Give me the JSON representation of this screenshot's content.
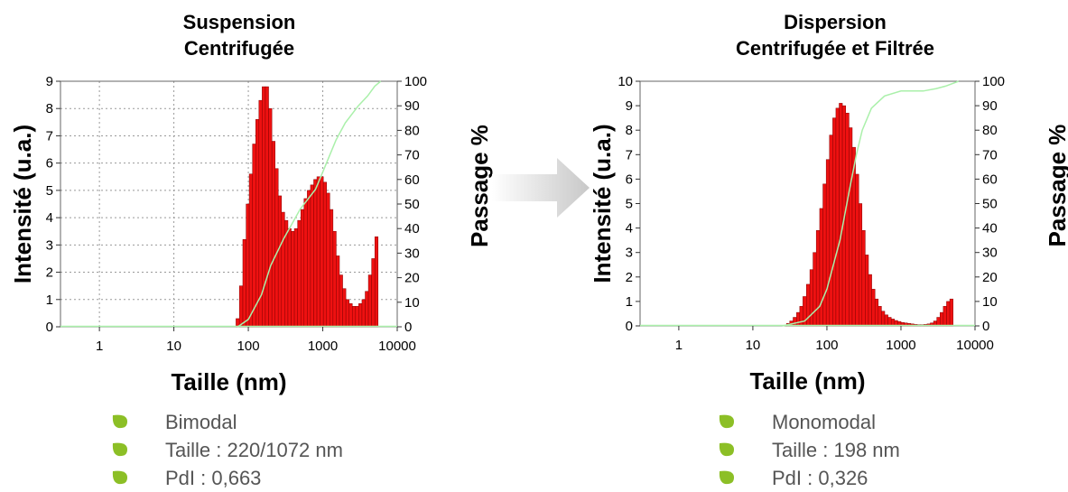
{
  "panels": [
    {
      "title_line1": "Suspension",
      "title_line2": "Centrifugée",
      "bullets": [
        "Bimodal",
        "Taille : 220/1072 nm",
        "PdI : 0,663"
      ]
    },
    {
      "title_line1": "Dispersion",
      "title_line2": "Centrifugée et Filtrée",
      "bullets": [
        "Monomodal",
        "Taille : 198 nm",
        "PdI : 0,326"
      ]
    }
  ],
  "colors": {
    "bars": "#ee1111",
    "bar_edge": "#880000",
    "cumulative": "#aaf0aa",
    "bullet": "#8cbf26",
    "arrow": "#c8c8c8"
  },
  "icons": {
    "bullet": "leaf-bullet-icon",
    "arrow": "right-arrow-icon"
  },
  "chart_data": [
    {
      "type": "bar",
      "xlabel": "Taille (nm)",
      "ylabel": "Intensité (u.a.)",
      "y2label": "Passage %",
      "xscale": "log",
      "xlim": [
        0.3,
        10000
      ],
      "xticks": [
        1,
        10,
        100,
        1000,
        10000
      ],
      "ylim": [
        0,
        9
      ],
      "yticks": [
        0,
        1,
        2,
        3,
        4,
        5,
        6,
        7,
        8,
        9
      ],
      "y2lim": [
        0,
        100
      ],
      "y2ticks": [
        0,
        10,
        20,
        30,
        40,
        50,
        60,
        70,
        80,
        90,
        100
      ],
      "grid": true,
      "x": [
        72,
        80,
        89,
        98,
        108,
        120,
        132,
        146,
        161,
        178,
        197,
        218,
        240,
        265,
        293,
        324,
        358,
        395,
        437,
        483,
        533,
        589,
        651,
        719,
        794,
        877,
        969,
        1070,
        1182,
        1305,
        1442,
        1593,
        1760,
        1944,
        2148,
        2372,
        2620,
        2894,
        3197,
        3532,
        3901,
        4310,
        4761,
        5260
      ],
      "values": [
        0.3,
        1.5,
        3.2,
        4.5,
        5.6,
        6.7,
        7.6,
        8.3,
        8.8,
        8.8,
        8.0,
        6.8,
        5.8,
        4.8,
        4.2,
        3.9,
        3.6,
        3.5,
        3.6,
        3.9,
        4.3,
        4.7,
        5.0,
        5.2,
        5.4,
        5.5,
        5.5,
        5.3,
        4.9,
        4.3,
        3.5,
        2.6,
        1.9,
        1.4,
        1.0,
        0.85,
        0.75,
        0.75,
        0.85,
        1.0,
        1.3,
        1.9,
        2.5,
        3.3
      ],
      "series": [
        {
          "name": "",
          "axis": "y2",
          "x": [
            72,
            100,
            150,
            200,
            300,
            500,
            800,
            1000,
            1500,
            2000,
            3000,
            4000,
            5000,
            6000
          ],
          "values": [
            0,
            3,
            13,
            25,
            36,
            48,
            56,
            63,
            76,
            83,
            90,
            94,
            98,
            100
          ]
        }
      ]
    },
    {
      "type": "bar",
      "xlabel": "Taille (nm)",
      "ylabel": "Intensité (u.a.)",
      "y2label": "Passage %",
      "xscale": "log",
      "xlim": [
        0.3,
        10000
      ],
      "xticks": [
        1,
        10,
        100,
        1000,
        10000
      ],
      "ylim": [
        0,
        10
      ],
      "yticks": [
        0,
        1,
        2,
        3,
        4,
        5,
        6,
        7,
        8,
        9,
        10
      ],
      "y2lim": [
        0,
        100
      ],
      "y2ticks": [
        0,
        10,
        20,
        30,
        40,
        50,
        60,
        70,
        80,
        90,
        100
      ],
      "grid": false,
      "x": [
        27,
        30,
        33,
        37,
        41,
        45,
        50,
        56,
        62,
        68,
        76,
        84,
        93,
        103,
        114,
        126,
        139,
        154,
        170,
        189,
        209,
        231,
        256,
        283,
        313,
        346,
        383,
        424,
        469,
        519,
        574,
        635,
        703,
        778,
        861,
        952,
        1054,
        1166,
        1290,
        1427,
        1579,
        1747,
        1933,
        2139,
        2366,
        2618,
        2897,
        3205,
        3546,
        3923,
        4341,
        4803
      ],
      "values": [
        0.02,
        0.1,
        0.2,
        0.35,
        0.55,
        0.8,
        1.2,
        1.7,
        2.3,
        3.0,
        3.9,
        4.8,
        5.8,
        6.8,
        7.8,
        8.5,
        8.9,
        9.1,
        9.0,
        8.7,
        8.1,
        7.3,
        6.2,
        5.0,
        3.9,
        2.9,
        2.1,
        1.5,
        1.1,
        0.8,
        0.6,
        0.45,
        0.35,
        0.28,
        0.22,
        0.18,
        0.14,
        0.12,
        0.1,
        0.08,
        0.06,
        0.05,
        0.05,
        0.06,
        0.08,
        0.12,
        0.2,
        0.35,
        0.55,
        0.8,
        1.0,
        1.1
      ],
      "series": [
        {
          "name": "",
          "axis": "y2",
          "x": [
            25,
            50,
            80,
            100,
            150,
            200,
            250,
            300,
            400,
            600,
            1000,
            2000,
            3000,
            4000,
            6000
          ],
          "values": [
            0,
            2,
            8,
            15,
            35,
            55,
            70,
            80,
            89,
            94,
            96,
            96,
            97,
            98,
            100
          ]
        }
      ]
    }
  ]
}
